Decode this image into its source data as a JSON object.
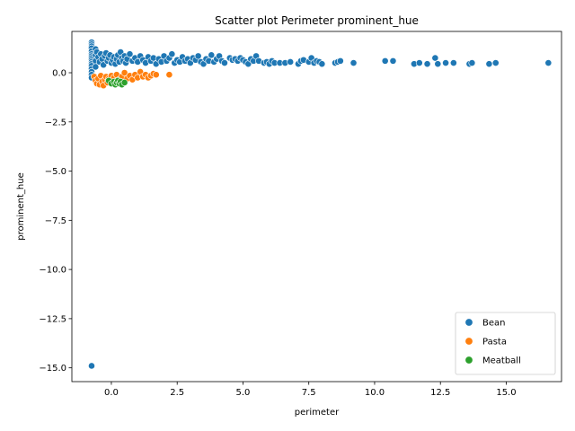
{
  "chart_data": {
    "type": "scatter",
    "title": "Scatter plot Perimeter prominent_hue",
    "xlabel": "perimeter",
    "ylabel": "prominent_hue",
    "xlim": [
      -1.5,
      17.1
    ],
    "ylim": [
      -15.7,
      2.1
    ],
    "xticks": [
      0.0,
      2.5,
      5.0,
      7.5,
      10.0,
      12.5,
      15.0
    ],
    "xtick_labels": [
      "0.0",
      "2.5",
      "5.0",
      "7.5",
      "10.0",
      "12.5",
      "15.0"
    ],
    "yticks": [
      0.0,
      -2.5,
      -5.0,
      -7.5,
      -10.0,
      -12.5,
      -15.0
    ],
    "ytick_labels": [
      "0.0",
      "−2.5",
      "−5.0",
      "−7.5",
      "−10.0",
      "−12.5",
      "−15.0"
    ],
    "legend_position": "bottom-right",
    "grid": false,
    "series": [
      {
        "name": "Bean",
        "color": "#1f77b4",
        "points": [
          [
            -0.75,
            1.55
          ],
          [
            -0.75,
            1.45
          ],
          [
            -0.75,
            1.35
          ],
          [
            -0.75,
            1.25
          ],
          [
            -0.75,
            1.1
          ],
          [
            -0.75,
            0.95
          ],
          [
            -0.75,
            0.85
          ],
          [
            -0.75,
            0.75
          ],
          [
            -0.75,
            0.65
          ],
          [
            -0.75,
            0.55
          ],
          [
            -0.75,
            0.45
          ],
          [
            -0.75,
            0.35
          ],
          [
            -0.75,
            0.2
          ],
          [
            -0.75,
            0.05
          ],
          [
            -0.75,
            -0.1
          ],
          [
            -0.75,
            -0.25
          ],
          [
            -0.75,
            -14.9
          ],
          [
            -0.6,
            1.2
          ],
          [
            -0.6,
            0.9
          ],
          [
            -0.6,
            0.6
          ],
          [
            -0.6,
            0.3
          ],
          [
            -0.55,
            1.05
          ],
          [
            -0.5,
            0.8
          ],
          [
            -0.45,
            0.55
          ],
          [
            -0.4,
            0.95
          ],
          [
            -0.35,
            0.7
          ],
          [
            -0.3,
            0.4
          ],
          [
            -0.25,
            0.85
          ],
          [
            -0.2,
            1.0
          ],
          [
            -0.15,
            0.6
          ],
          [
            -0.1,
            0.75
          ],
          [
            -0.05,
            0.9
          ],
          [
            0.0,
            0.5
          ],
          [
            0.05,
            0.65
          ],
          [
            0.1,
            0.8
          ],
          [
            0.15,
            0.45
          ],
          [
            0.2,
            0.7
          ],
          [
            0.25,
            0.9
          ],
          [
            0.3,
            0.55
          ],
          [
            0.35,
            1.05
          ],
          [
            0.4,
            0.75
          ],
          [
            0.45,
            0.6
          ],
          [
            0.5,
            0.85
          ],
          [
            0.55,
            0.5
          ],
          [
            0.6,
            0.7
          ],
          [
            0.7,
            0.95
          ],
          [
            0.8,
            0.6
          ],
          [
            0.9,
            0.75
          ],
          [
            1.0,
            0.55
          ],
          [
            1.1,
            0.85
          ],
          [
            1.2,
            0.65
          ],
          [
            1.3,
            0.5
          ],
          [
            1.4,
            0.8
          ],
          [
            1.5,
            0.6
          ],
          [
            1.6,
            0.75
          ],
          [
            1.7,
            0.45
          ],
          [
            1.8,
            0.7
          ],
          [
            1.9,
            0.55
          ],
          [
            2.0,
            0.85
          ],
          [
            2.1,
            0.6
          ],
          [
            2.2,
            0.75
          ],
          [
            2.3,
            0.95
          ],
          [
            2.4,
            0.5
          ],
          [
            2.5,
            0.65
          ],
          [
            2.6,
            0.55
          ],
          [
            2.7,
            0.8
          ],
          [
            2.8,
            0.6
          ],
          [
            2.9,
            0.7
          ],
          [
            3.0,
            0.5
          ],
          [
            3.1,
            0.75
          ],
          [
            3.2,
            0.65
          ],
          [
            3.3,
            0.85
          ],
          [
            3.4,
            0.55
          ],
          [
            3.5,
            0.45
          ],
          [
            3.6,
            0.7
          ],
          [
            3.7,
            0.6
          ],
          [
            3.8,
            0.9
          ],
          [
            3.9,
            0.55
          ],
          [
            4.0,
            0.7
          ],
          [
            4.1,
            0.85
          ],
          [
            4.2,
            0.6
          ],
          [
            4.3,
            0.5
          ],
          [
            4.5,
            0.75
          ],
          [
            4.6,
            0.65
          ],
          [
            4.7,
            0.7
          ],
          [
            4.8,
            0.6
          ],
          [
            4.9,
            0.75
          ],
          [
            5.0,
            0.65
          ],
          [
            5.1,
            0.55
          ],
          [
            5.2,
            0.45
          ],
          [
            5.3,
            0.7
          ],
          [
            5.4,
            0.6
          ],
          [
            5.5,
            0.85
          ],
          [
            5.6,
            0.6
          ],
          [
            5.8,
            0.5
          ],
          [
            5.9,
            0.55
          ],
          [
            6.0,
            0.45
          ],
          [
            6.1,
            0.6
          ],
          [
            6.2,
            0.5
          ],
          [
            6.4,
            0.5
          ],
          [
            6.6,
            0.5
          ],
          [
            6.8,
            0.55
          ],
          [
            7.1,
            0.45
          ],
          [
            7.2,
            0.6
          ],
          [
            7.3,
            0.65
          ],
          [
            7.5,
            0.55
          ],
          [
            7.6,
            0.75
          ],
          [
            7.7,
            0.5
          ],
          [
            7.8,
            0.6
          ],
          [
            7.9,
            0.55
          ],
          [
            8.0,
            0.45
          ],
          [
            8.5,
            0.5
          ],
          [
            8.6,
            0.55
          ],
          [
            8.7,
            0.6
          ],
          [
            9.2,
            0.5
          ],
          [
            10.4,
            0.6
          ],
          [
            10.7,
            0.6
          ],
          [
            11.5,
            0.45
          ],
          [
            11.7,
            0.5
          ],
          [
            12.0,
            0.45
          ],
          [
            12.3,
            0.75
          ],
          [
            12.4,
            0.45
          ],
          [
            12.7,
            0.5
          ],
          [
            13.0,
            0.5
          ],
          [
            13.6,
            0.45
          ],
          [
            13.7,
            0.5
          ],
          [
            14.35,
            0.45
          ],
          [
            14.6,
            0.5
          ],
          [
            16.6,
            0.5
          ]
        ]
      },
      {
        "name": "Pasta",
        "color": "#ff7f0e",
        "points": [
          [
            -0.65,
            -0.2
          ],
          [
            -0.6,
            -0.4
          ],
          [
            -0.55,
            -0.55
          ],
          [
            -0.5,
            -0.3
          ],
          [
            -0.45,
            -0.6
          ],
          [
            -0.4,
            -0.15
          ],
          [
            -0.35,
            -0.45
          ],
          [
            -0.3,
            -0.65
          ],
          [
            -0.25,
            -0.35
          ],
          [
            -0.2,
            -0.2
          ],
          [
            -0.15,
            -0.5
          ],
          [
            -0.1,
            -0.3
          ],
          [
            0.0,
            -0.15
          ],
          [
            0.05,
            -0.4
          ],
          [
            0.1,
            -0.25
          ],
          [
            0.2,
            -0.1
          ],
          [
            0.3,
            -0.35
          ],
          [
            0.4,
            -0.2
          ],
          [
            0.5,
            0.0
          ],
          [
            0.6,
            -0.3
          ],
          [
            0.7,
            -0.15
          ],
          [
            0.8,
            -0.35
          ],
          [
            0.9,
            -0.1
          ],
          [
            1.0,
            -0.25
          ],
          [
            1.1,
            0.05
          ],
          [
            1.2,
            -0.2
          ],
          [
            1.3,
            -0.1
          ],
          [
            1.4,
            -0.25
          ],
          [
            1.5,
            -0.15
          ],
          [
            1.6,
            -0.05
          ],
          [
            1.7,
            -0.1
          ],
          [
            2.2,
            -0.1
          ]
        ]
      },
      {
        "name": "Meatball",
        "color": "#2ca02c",
        "points": [
          [
            -0.1,
            -0.4
          ],
          [
            0.0,
            -0.55
          ],
          [
            0.1,
            -0.45
          ],
          [
            0.15,
            -0.6
          ],
          [
            0.2,
            -0.5
          ],
          [
            0.25,
            -0.4
          ],
          [
            0.3,
            -0.55
          ],
          [
            0.35,
            -0.45
          ],
          [
            0.4,
            -0.6
          ],
          [
            0.5,
            -0.5
          ]
        ]
      }
    ]
  }
}
